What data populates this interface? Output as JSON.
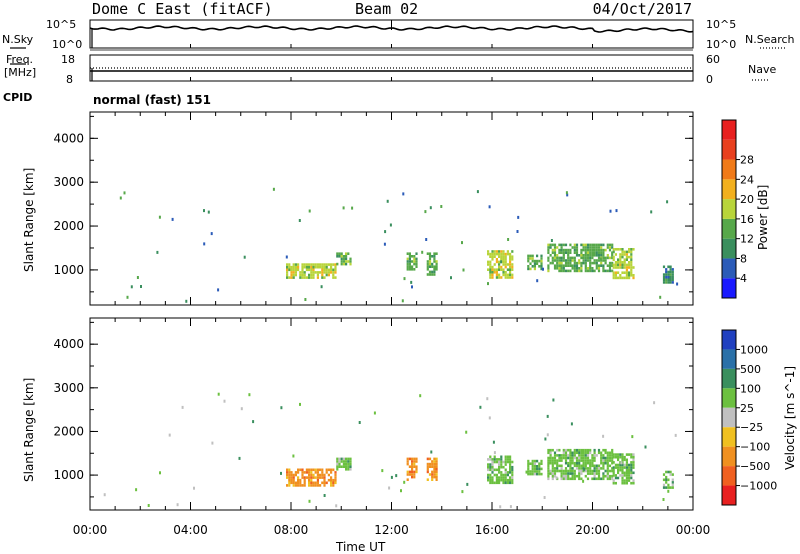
{
  "header": {
    "title": "Dome C East (fitACF)",
    "beam": "Beam 02",
    "date": "04/Oct/2017"
  },
  "panels": {
    "nsky": {
      "label": "N.Sky",
      "right_label": "N.Search",
      "left_ticks": [
        "10^5",
        "10^0"
      ],
      "right_ticks": [
        "10^5",
        "10^0"
      ]
    },
    "freq": {
      "label_top": "Freq.",
      "label_bottom": "[MHz]",
      "right_label": "Nave",
      "left_ticks": [
        "18",
        "8"
      ],
      "right_ticks": [
        "60",
        "0"
      ]
    },
    "cpid": {
      "label": "CPID",
      "value": "normal (fast) 151"
    }
  },
  "chart_data": [
    {
      "type": "heatmap",
      "name": "power",
      "ylabel": "Slant Range [km]",
      "ylim": [
        200,
        4600
      ],
      "yticks": [
        1000,
        2000,
        3000,
        4000
      ],
      "xlim": [
        0,
        24
      ],
      "colorbar": {
        "label": "Power [dB]",
        "ticks": [
          4,
          8,
          12,
          16,
          20,
          24,
          28
        ],
        "colors": [
          "#1a1aff",
          "#2b5bb8",
          "#3a8f5e",
          "#57a84a",
          "#b8d43a",
          "#f2b01e",
          "#f07a18",
          "#e8401e",
          "#e82020"
        ]
      },
      "patches": [
        {
          "t": [
            7.8,
            9.8
          ],
          "r": [
            800,
            1150
          ],
          "level": 16
        },
        {
          "t": [
            9.8,
            10.4
          ],
          "r": [
            1150,
            1400
          ],
          "level": 12
        },
        {
          "t": [
            12.6,
            13.0
          ],
          "r": [
            1000,
            1400
          ],
          "level": 14
        },
        {
          "t": [
            13.4,
            13.8
          ],
          "r": [
            900,
            1400
          ],
          "level": 14
        },
        {
          "t": [
            15.8,
            16.8
          ],
          "r": [
            850,
            1450
          ],
          "level": 16
        },
        {
          "t": [
            17.4,
            18.0
          ],
          "r": [
            1000,
            1350
          ],
          "level": 12
        },
        {
          "t": [
            18.2,
            20.8
          ],
          "r": [
            1000,
            1600
          ],
          "level": 12
        },
        {
          "t": [
            20.8,
            21.6
          ],
          "r": [
            800,
            1500
          ],
          "level": 18
        },
        {
          "t": [
            22.8,
            23.2
          ],
          "r": [
            700,
            1100
          ],
          "level": 10
        }
      ]
    },
    {
      "type": "heatmap",
      "name": "velocity",
      "ylabel": "Slant Range [km]",
      "ylim": [
        200,
        4600
      ],
      "yticks": [
        1000,
        2000,
        3000,
        4000
      ],
      "xlim": [
        0,
        24
      ],
      "xticks": [
        "00:00",
        "04:00",
        "08:00",
        "12:00",
        "16:00",
        "20:00",
        "00:00"
      ],
      "xlabel": "Time UT",
      "colorbar": {
        "label": "Velocity [m s^-1]",
        "ticks": [
          "1000",
          "500",
          "100",
          "25",
          "−25",
          "−100",
          "−500",
          "−1000"
        ],
        "colors": [
          "#2040c0",
          "#2a70a8",
          "#3a8f5e",
          "#6cc040",
          "#c0c0c0",
          "#f0c020",
          "#f09020",
          "#f06020",
          "#e82020"
        ]
      },
      "patches": [
        {
          "t": [
            7.8,
            9.8
          ],
          "r": [
            750,
            1150
          ],
          "level": -300
        },
        {
          "t": [
            9.8,
            10.4
          ],
          "r": [
            1150,
            1400
          ],
          "level": 60
        },
        {
          "t": [
            12.6,
            13.0
          ],
          "r": [
            900,
            1400
          ],
          "level": -200
        },
        {
          "t": [
            13.4,
            13.8
          ],
          "r": [
            900,
            1400
          ],
          "level": -250
        },
        {
          "t": [
            15.8,
            16.8
          ],
          "r": [
            850,
            1450
          ],
          "level": 80
        },
        {
          "t": [
            17.4,
            18.0
          ],
          "r": [
            1000,
            1350
          ],
          "level": 60
        },
        {
          "t": [
            18.2,
            20.8
          ],
          "r": [
            900,
            1600
          ],
          "level": 60
        },
        {
          "t": [
            20.8,
            21.6
          ],
          "r": [
            800,
            1500
          ],
          "level": 60
        },
        {
          "t": [
            22.8,
            23.2
          ],
          "r": [
            700,
            1100
          ],
          "level": 80
        }
      ]
    }
  ]
}
